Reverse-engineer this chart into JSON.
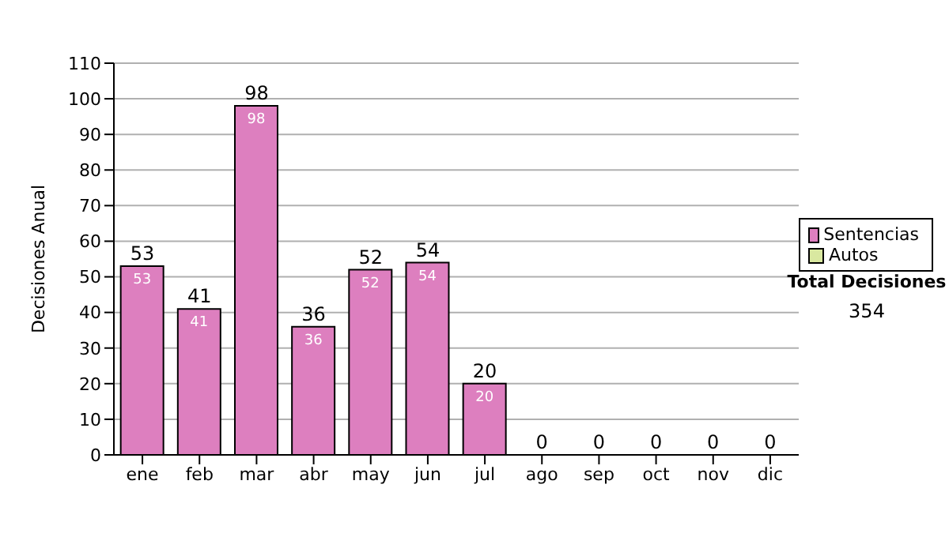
{
  "chart_data": {
    "type": "bar",
    "ylabel": "Decisiones Anual",
    "categories": [
      "ene",
      "feb",
      "mar",
      "abr",
      "may",
      "jun",
      "jul",
      "ago",
      "sep",
      "oct",
      "nov",
      "dic"
    ],
    "series": [
      {
        "name": "Sentencias",
        "color": "#dd7fbf",
        "values": [
          53,
          41,
          98,
          36,
          52,
          54,
          20,
          0,
          0,
          0,
          0,
          0
        ],
        "value_labels": [
          "53",
          "41",
          "98",
          "36",
          "52",
          "54",
          "20",
          null,
          null,
          null,
          null,
          null
        ]
      },
      {
        "name": "Autos",
        "color": "#d9e8a0",
        "values": [
          0,
          0,
          0,
          0,
          0,
          0,
          0,
          0,
          0,
          0,
          0,
          0
        ]
      }
    ],
    "stacked": true,
    "totals": [
      "53",
      "41",
      "98",
      "36",
      "52",
      "54",
      "20",
      "0",
      "0",
      "0",
      "0",
      "0"
    ],
    "ylim": [
      0,
      110
    ],
    "yticks": [
      0,
      10,
      20,
      30,
      40,
      50,
      60,
      70,
      80,
      90,
      100,
      110
    ],
    "grid": "y",
    "legend": "right",
    "annotations": [
      "Total Decisiones",
      "354"
    ]
  }
}
